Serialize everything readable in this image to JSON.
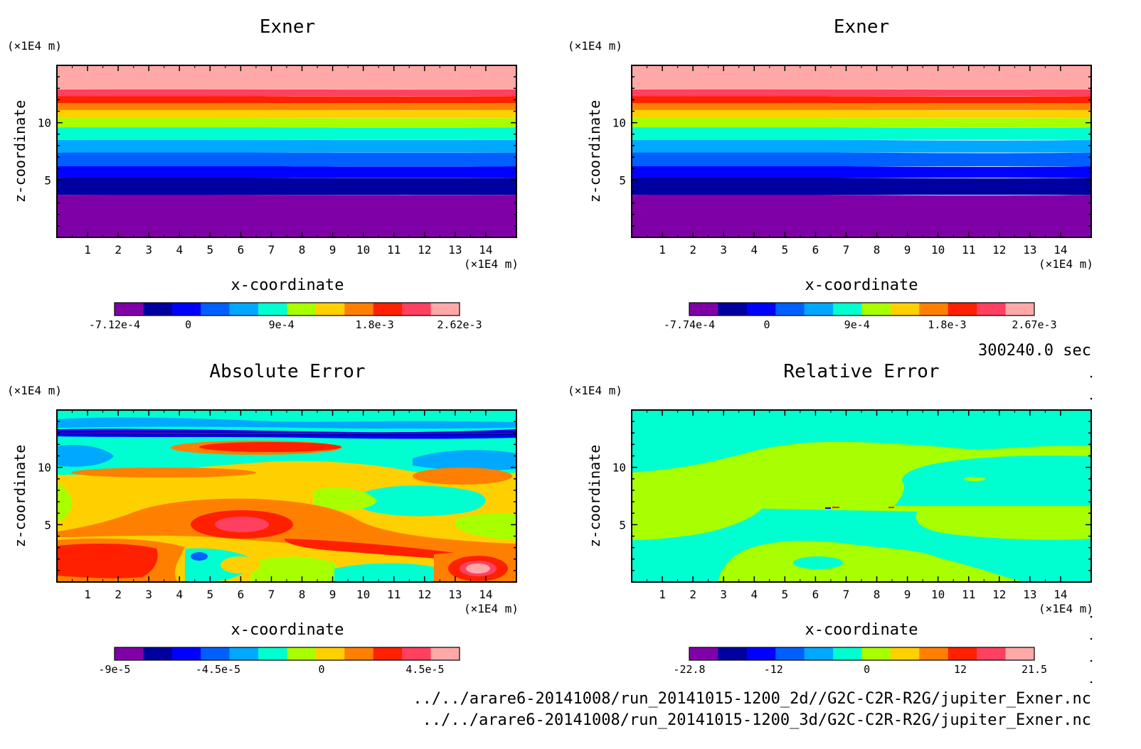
{
  "time_label": "300240.0 sec",
  "file_paths": [
    "../../arare6-20141008/run_20141015-1200_2d//G2C-C2R-R2G/jupiter_Exner.nc",
    "../../arare6-20141008/run_20141015-1200_3d/G2C-C2R-R2G/jupiter_Exner.nc"
  ],
  "palette": [
    "#8000a8",
    "#0000a0",
    "#0000ff",
    "#0060ff",
    "#00a8ff",
    "#00ffd0",
    "#a8ff00",
    "#ffd000",
    "#ff8000",
    "#ff2000",
    "#ff4060",
    "#ffa8a8"
  ],
  "chart_data": [
    {
      "type": "heatmap",
      "title": "Exner",
      "xlabel": "x-coordinate",
      "ylabel": "z-coordinate",
      "x_unit": "(×1E4 m)",
      "z_unit": "(×1E4 m)",
      "xlim": [
        0,
        15
      ],
      "zlim": [
        0,
        15
      ],
      "x_ticks": [
        1,
        2,
        3,
        4,
        5,
        6,
        7,
        8,
        9,
        10,
        11,
        12,
        13,
        14
      ],
      "z_ticks": [
        5,
        10
      ],
      "description": "horizontal layers, value increases with height",
      "bands_z_bottom_up": [
        {
          "z_top": 3.7,
          "level": 0
        },
        {
          "z_top": 5.2,
          "level": 1
        },
        {
          "z_top": 6.2,
          "level": 2
        },
        {
          "z_top": 7.4,
          "level": 3
        },
        {
          "z_top": 8.5,
          "level": 4
        },
        {
          "z_top": 9.6,
          "level": 5
        },
        {
          "z_top": 10.4,
          "level": 6
        },
        {
          "z_top": 11.1,
          "level": 7
        },
        {
          "z_top": 11.7,
          "level": 8
        },
        {
          "z_top": 12.3,
          "level": 9
        },
        {
          "z_top": 12.9,
          "level": 10
        },
        {
          "z_top": 15.0,
          "level": 11
        }
      ],
      "colorbar": {
        "min": -0.000712,
        "max": 0.00262,
        "tick_labels": [
          "-7.12e-4",
          "0",
          "9e-4",
          "1.8e-3",
          "2.62e-3"
        ]
      }
    },
    {
      "type": "heatmap",
      "title": "Exner",
      "xlabel": "x-coordinate",
      "ylabel": "z-coordinate",
      "x_unit": "(×1E4 m)",
      "z_unit": "(×1E4 m)",
      "xlim": [
        0,
        15
      ],
      "zlim": [
        0,
        15
      ],
      "x_ticks": [
        1,
        2,
        3,
        4,
        5,
        6,
        7,
        8,
        9,
        10,
        11,
        12,
        13,
        14
      ],
      "z_ticks": [
        5,
        10
      ],
      "description": "horizontal layers, value increases with height",
      "bands_z_bottom_up": [
        {
          "z_top": 3.7,
          "level": 0
        },
        {
          "z_top": 5.2,
          "level": 1
        },
        {
          "z_top": 6.2,
          "level": 2
        },
        {
          "z_top": 7.4,
          "level": 3
        },
        {
          "z_top": 8.5,
          "level": 4
        },
        {
          "z_top": 9.6,
          "level": 5
        },
        {
          "z_top": 10.4,
          "level": 6
        },
        {
          "z_top": 11.1,
          "level": 7
        },
        {
          "z_top": 11.7,
          "level": 8
        },
        {
          "z_top": 12.3,
          "level": 9
        },
        {
          "z_top": 12.9,
          "level": 10
        },
        {
          "z_top": 15.0,
          "level": 11
        }
      ],
      "colorbar": {
        "min": -0.000774,
        "max": 0.00267,
        "tick_labels": [
          "-7.74e-4",
          "0",
          "9e-4",
          "1.8e-3",
          "2.67e-3"
        ]
      }
    },
    {
      "type": "heatmap",
      "title": "Absolute Error",
      "xlabel": "x-coordinate",
      "ylabel": "z-coordinate",
      "x_unit": "(×1E4 m)",
      "z_unit": "(×1E4 m)",
      "xlim": [
        0,
        15
      ],
      "zlim": [
        0,
        15
      ],
      "x_ticks": [
        1,
        2,
        3,
        4,
        5,
        6,
        7,
        8,
        9,
        10,
        11,
        12,
        13,
        14
      ],
      "z_ticks": [
        5,
        10
      ],
      "description": "irregular error field; strongest negative near z≈12.8, positive maxima near z≈3 and z≈5",
      "colorbar": {
        "min": -9e-05,
        "max": 6e-05,
        "tick_labels": [
          "-9e-5",
          "-4.5e-5",
          "0",
          "4.5e-5"
        ]
      }
    },
    {
      "type": "heatmap",
      "title": "Relative Error",
      "xlabel": "x-coordinate",
      "ylabel": "z-coordinate",
      "x_unit": "(×1E4 m)",
      "z_unit": "(×1E4 m)",
      "xlim": [
        0,
        15
      ],
      "zlim": [
        0,
        15
      ],
      "x_ticks": [
        1,
        2,
        3,
        4,
        5,
        6,
        7,
        8,
        9,
        10,
        11,
        12,
        13,
        14
      ],
      "z_ticks": [
        5,
        10
      ],
      "description": "mostly near zero (cyan / yellow-green), small spikes near x≈7 and x≈8.5, z≈6.4",
      "colorbar": {
        "min": -22.8,
        "max": 21.5,
        "tick_labels": [
          "-22.8",
          "-12",
          "0",
          "12",
          "21.5"
        ]
      }
    }
  ]
}
